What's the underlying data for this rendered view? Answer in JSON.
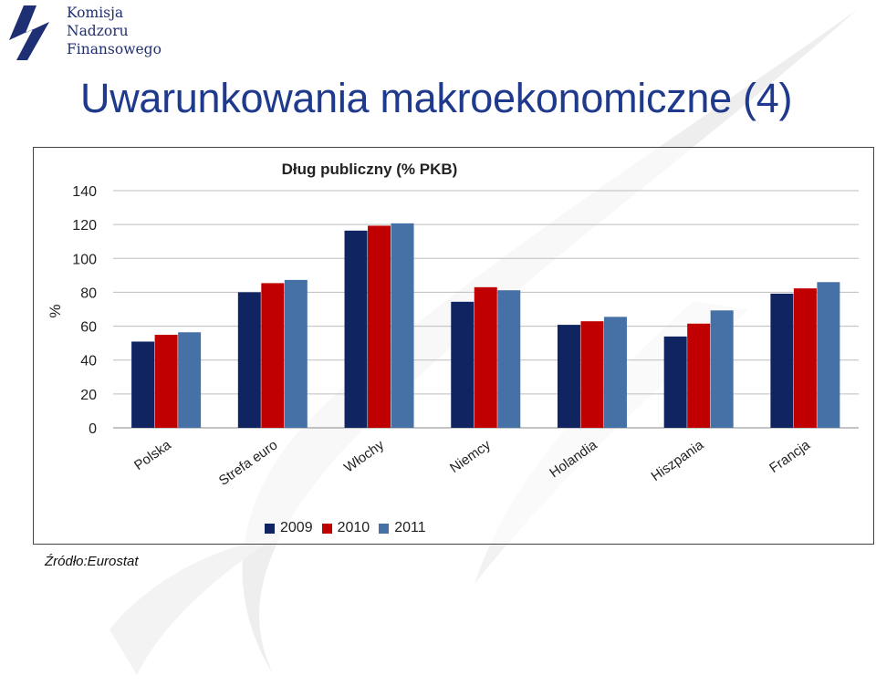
{
  "header": {
    "logo_lines": [
      "Komisja",
      "Nadzoru",
      "Finansowego"
    ],
    "title": "Uwarunkowania makroekonomiczne (4)"
  },
  "source": "Źródło:Eurostat",
  "colors": {
    "series": [
      "#0f2461",
      "#c00000",
      "#4671a6"
    ],
    "title": "#1f3a8c",
    "logo": "#1f2f73"
  },
  "chart_data": {
    "type": "bar",
    "title": "Dług publiczny (% PKB)",
    "ylabel": "%",
    "xlabel": "",
    "ylim": [
      0,
      140
    ],
    "yticks": [
      0,
      20,
      40,
      60,
      80,
      100,
      120,
      140
    ],
    "grid": true,
    "legend_position": "bottom",
    "categories": [
      "Polska",
      "Strefa euro",
      "Włochy",
      "Niemcy",
      "Holandia",
      "Hiszpania",
      "Francja"
    ],
    "series": [
      {
        "name": "2009",
        "values": [
          50.9,
          80.0,
          116.4,
          74.4,
          60.8,
          53.9,
          79.2
        ]
      },
      {
        "name": "2010",
        "values": [
          54.9,
          85.4,
          119.3,
          83.0,
          62.9,
          61.5,
          82.3
        ]
      },
      {
        "name": "2011",
        "values": [
          56.4,
          87.3,
          120.7,
          81.2,
          65.5,
          69.3,
          86.0
        ]
      }
    ]
  }
}
